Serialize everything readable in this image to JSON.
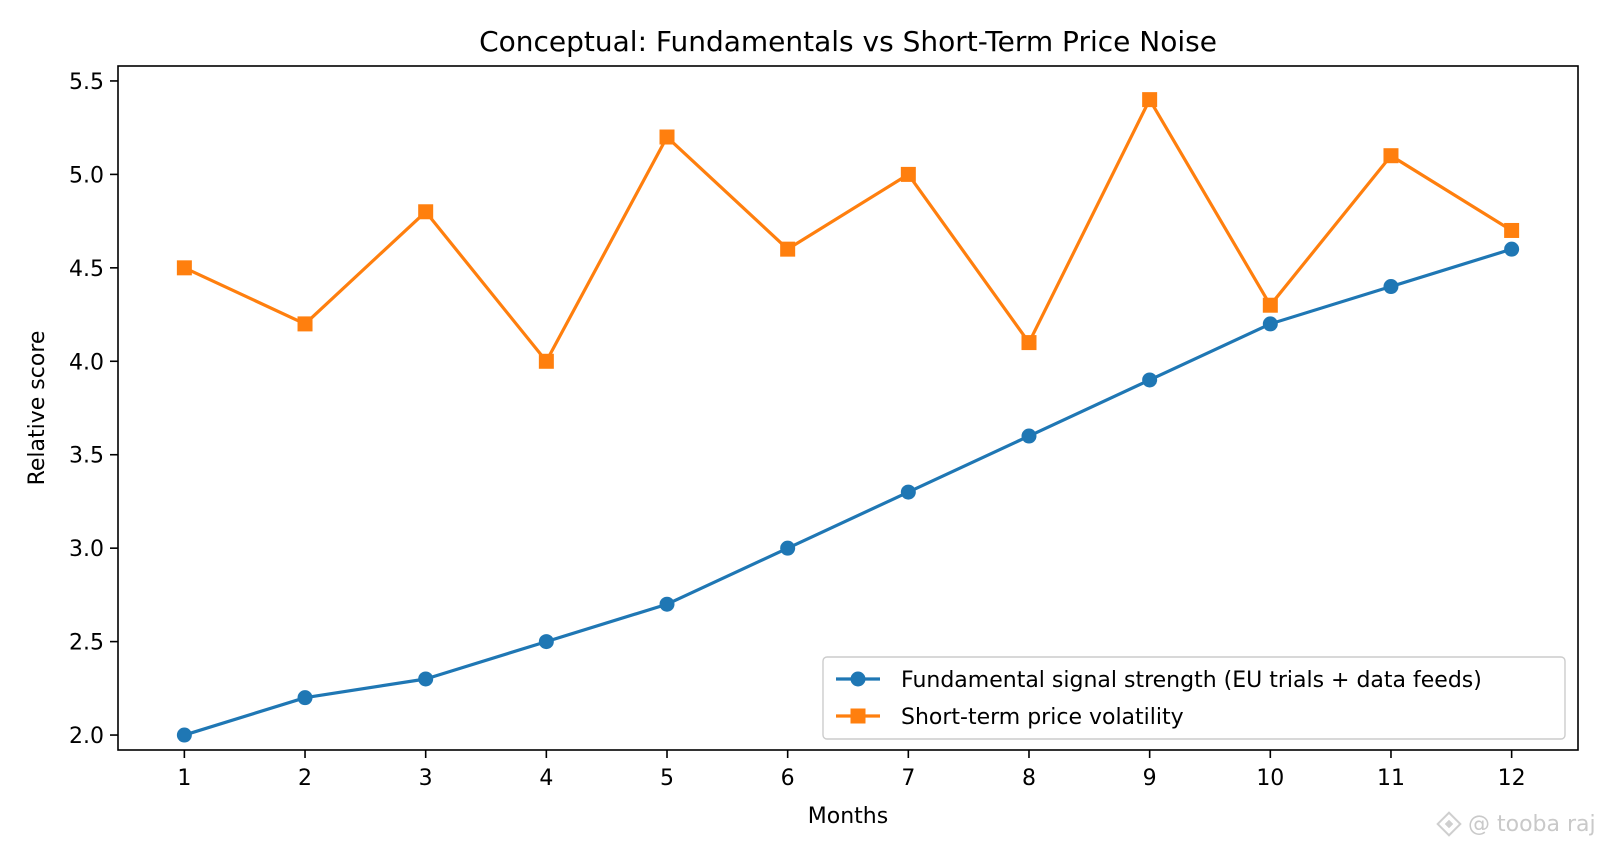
{
  "chart_data": {
    "type": "line",
    "title": "Conceptual: Fundamentals vs Short-Term Price Noise",
    "xlabel": "Months",
    "ylabel": "Relative score",
    "x": [
      1,
      2,
      3,
      4,
      5,
      6,
      7,
      8,
      9,
      10,
      11,
      12
    ],
    "xticks": [
      "1",
      "2",
      "3",
      "4",
      "5",
      "6",
      "7",
      "8",
      "9",
      "10",
      "11",
      "12"
    ],
    "yticks": [
      "2.0",
      "2.5",
      "3.0",
      "3.5",
      "4.0",
      "4.5",
      "5.0",
      "5.5"
    ],
    "xlim": [
      0.45,
      12.55
    ],
    "ylim": [
      1.92,
      5.58
    ],
    "grid": false,
    "legend_position": "lower-right",
    "series": [
      {
        "name": "Fundamental signal strength (EU trials + data feeds)",
        "color": "#1f77b4",
        "marker": "circle",
        "values": [
          2.0,
          2.2,
          2.3,
          2.5,
          2.7,
          3.0,
          3.3,
          3.6,
          3.9,
          4.2,
          4.4,
          4.6
        ]
      },
      {
        "name": "Short-term price volatility",
        "color": "#ff7f0e",
        "marker": "square",
        "values": [
          4.5,
          4.2,
          4.8,
          4.0,
          5.2,
          4.6,
          5.0,
          4.1,
          5.4,
          4.3,
          5.1,
          4.7
        ]
      }
    ]
  },
  "watermark": {
    "text": "@ tooba raj"
  }
}
